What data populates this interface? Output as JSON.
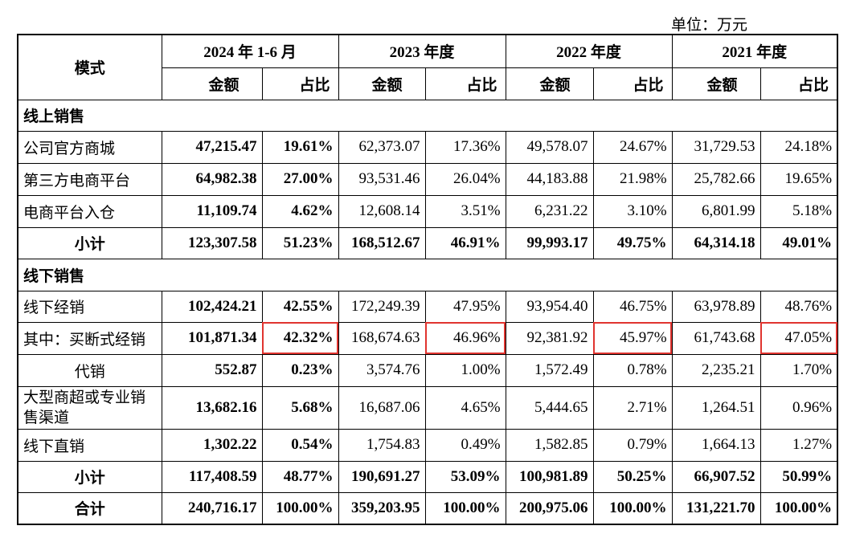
{
  "unit": "单位：万元",
  "table": {
    "header": {
      "first": "模式",
      "periods": [
        "2024 年 1-6 月",
        "2023 年度",
        "2022 年度",
        "2021 年度"
      ],
      "subheaders": [
        [
          "金额",
          "占比"
        ],
        [
          "金额",
          "占比"
        ],
        [
          "金额",
          "占比"
        ],
        [
          "金额",
          "占比"
        ]
      ]
    },
    "rows": [
      {
        "section": "线上销售"
      },
      {
        "label": "公司官方商城",
        "cells": [
          "47,215.47",
          "19.61%",
          "62,373.07",
          "17.36%",
          "49,578.07",
          "24.67%",
          "31,729.53",
          "24.18%"
        ]
      },
      {
        "label": "第三方电商平台",
        "cells": [
          "64,982.38",
          "27.00%",
          "93,531.46",
          "26.04%",
          "44,183.88",
          "21.98%",
          "25,782.66",
          "19.65%"
        ]
      },
      {
        "label": "电商平台入仓",
        "cells": [
          "11,109.74",
          "4.62%",
          "12,608.14",
          "3.51%",
          "6,231.22",
          "3.10%",
          "6,801.99",
          "5.18%"
        ]
      },
      {
        "label": "小计",
        "cells": [
          "123,307.58",
          "51.23%",
          "168,512.67",
          "46.91%",
          "99,993.17",
          "49.75%",
          "64,314.18",
          "49.01%"
        ]
      },
      {
        "section": "线下销售"
      },
      {
        "label": "线下经销",
        "cells": [
          "102,424.21",
          "42.55%",
          "172,249.39",
          "47.95%",
          "93,954.40",
          "46.75%",
          "63,978.89",
          "48.76%"
        ]
      },
      {
        "label": "其中：买断式经销",
        "cells": [
          "101,871.34",
          "42.32%",
          "168,674.63",
          "46.96%",
          "92,381.92",
          "45.97%",
          "61,743.68",
          "47.05%"
        ]
      },
      {
        "label": "代销",
        "cells": [
          "552.87",
          "0.23%",
          "3,574.76",
          "1.00%",
          "1,572.49",
          "0.78%",
          "2,235.21",
          "1.70%"
        ]
      },
      {
        "label": "大型商超或专业销售渠道",
        "cells": [
          "13,682.16",
          "5.68%",
          "16,687.06",
          "4.65%",
          "5,444.65",
          "2.71%",
          "1,264.51",
          "0.96%"
        ]
      },
      {
        "label": "线下直销",
        "cells": [
          "1,302.22",
          "0.54%",
          "1,754.83",
          "0.49%",
          "1,582.85",
          "0.79%",
          "1,664.13",
          "1.27%"
        ]
      },
      {
        "label": "小计",
        "cells": [
          "117,408.59",
          "48.77%",
          "190,691.27",
          "53.09%",
          "100,981.89",
          "50.25%",
          "66,907.52",
          "50.99%"
        ]
      },
      {
        "label": "合计",
        "cells": [
          "240,716.17",
          "100.00%",
          "359,203.95",
          "100.00%",
          "200,975.06",
          "100.00%",
          "131,221.70",
          "100.00%"
        ]
      }
    ]
  }
}
